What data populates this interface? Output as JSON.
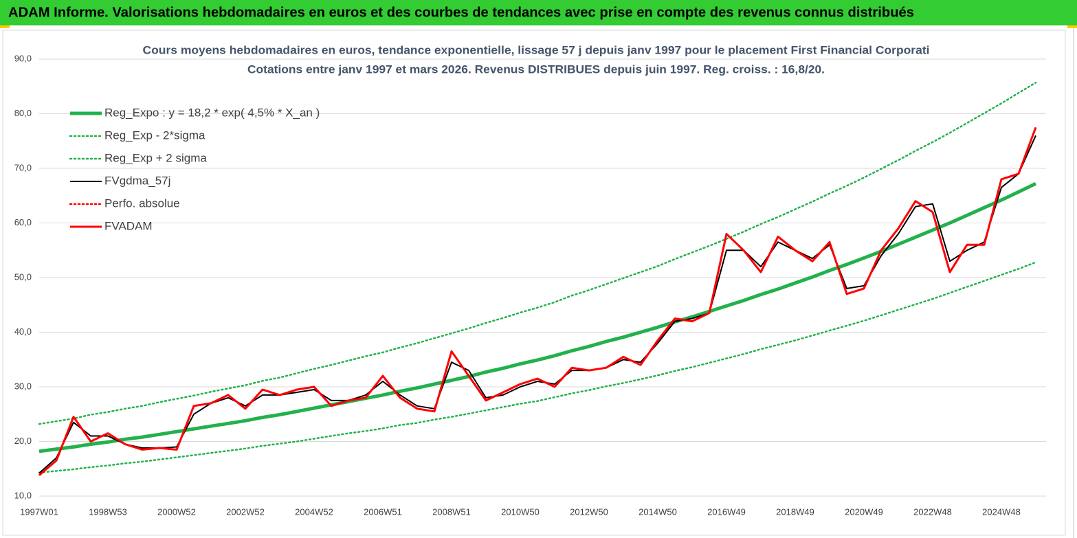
{
  "header": {
    "title": "ADAM Informe. Valorisations hebdomadaires en euros et des courbes de tendances avec prise en compte des revenus connus distribués"
  },
  "chart_data": {
    "type": "line",
    "title": "Cours moyens hebdomadaires en euros, tendance exponentielle, lissage 57 j depuis janv 1997 pour le placement First Financial Corporati",
    "subtitle": "Cotations entre janv 1997 et mars 2026. Revenus DISTRIBUES depuis juin 1997. Reg. croiss. : 16,8/20.",
    "categories": [
      "1997W01",
      null,
      null,
      null,
      "1998W53",
      null,
      null,
      null,
      "2000W52",
      null,
      null,
      null,
      "2002W52",
      null,
      null,
      null,
      "2004W52",
      null,
      null,
      null,
      "2006W51",
      null,
      null,
      null,
      "2008W51",
      null,
      null,
      null,
      "2010W50",
      null,
      null,
      null,
      "2012W50",
      null,
      null,
      null,
      "2014W50",
      null,
      null,
      null,
      "2016W49",
      null,
      null,
      null,
      "2018W49",
      null,
      null,
      null,
      "2020W49",
      null,
      null,
      null,
      "2022W48",
      null,
      null,
      null,
      "2024W48",
      null,
      null
    ],
    "ylim": [
      10,
      90
    ],
    "yticks": [
      {
        "value": 10,
        "label": "10,0"
      },
      {
        "value": 20,
        "label": "20,0"
      },
      {
        "value": 30,
        "label": "30,0"
      },
      {
        "value": 40,
        "label": "40,0"
      },
      {
        "value": 50,
        "label": "50,0"
      },
      {
        "value": 60,
        "label": "60,0"
      },
      {
        "value": 70,
        "label": "70,0"
      },
      {
        "value": 80,
        "label": "80,0"
      },
      {
        "value": 90,
        "label": "90,0"
      }
    ],
    "grid": true,
    "legend": "top-left",
    "series": [
      {
        "name": "Reg_Expo : y = 18,2 * exp( 4,5% *  X_an )",
        "color": "#22b14c",
        "style": "thick",
        "values": [
          18.2,
          18.6,
          19.0,
          19.5,
          19.9,
          20.4,
          20.8,
          21.3,
          21.8,
          22.3,
          22.8,
          23.3,
          23.8,
          24.4,
          24.9,
          25.5,
          26.1,
          26.7,
          27.3,
          27.9,
          28.5,
          29.2,
          29.8,
          30.5,
          31.2,
          31.9,
          32.7,
          33.4,
          34.2,
          34.9,
          35.7,
          36.6,
          37.4,
          38.3,
          39.1,
          40.0,
          40.9,
          41.9,
          42.8,
          43.8,
          44.8,
          45.8,
          46.9,
          47.9,
          49.0,
          50.1,
          51.3,
          52.4,
          53.6,
          54.8,
          56.1,
          57.4,
          58.7,
          60.0,
          61.4,
          62.8,
          64.2,
          65.7,
          67.2
        ]
      },
      {
        "name": "Reg_Exp - 2*sigma",
        "color": "#22b14c",
        "style": "dotted",
        "values": [
          14.3,
          14.6,
          14.9,
          15.3,
          15.6,
          16.0,
          16.3,
          16.7,
          17.1,
          17.5,
          17.9,
          18.3,
          18.7,
          19.2,
          19.6,
          20.0,
          20.5,
          21.0,
          21.5,
          21.9,
          22.4,
          23.0,
          23.4,
          24.0,
          24.5,
          25.1,
          25.7,
          26.3,
          26.9,
          27.4,
          28.1,
          28.8,
          29.4,
          30.1,
          30.7,
          31.4,
          32.1,
          32.9,
          33.6,
          34.4,
          35.2,
          36.0,
          36.9,
          37.7,
          38.5,
          39.4,
          40.3,
          41.2,
          42.1,
          43.1,
          44.1,
          45.1,
          46.1,
          47.2,
          48.3,
          49.4,
          50.5,
          51.6,
          52.8
        ]
      },
      {
        "name": "Reg_Exp + 2 sigma",
        "color": "#22b14c",
        "style": "dotted",
        "values": [
          23.2,
          23.7,
          24.2,
          24.9,
          25.4,
          26.0,
          26.5,
          27.2,
          27.8,
          28.4,
          29.1,
          29.7,
          30.3,
          31.1,
          31.7,
          32.5,
          33.3,
          34.0,
          34.8,
          35.6,
          36.3,
          37.2,
          38.0,
          38.9,
          39.8,
          40.7,
          41.7,
          42.6,
          43.6,
          44.5,
          45.5,
          46.7,
          47.7,
          48.8,
          49.9,
          51.0,
          52.1,
          53.4,
          54.6,
          55.8,
          57.1,
          58.4,
          59.8,
          61.1,
          62.5,
          63.9,
          65.4,
          66.8,
          68.3,
          69.9,
          71.5,
          73.2,
          74.8,
          76.5,
          78.3,
          80.1,
          81.9,
          83.8,
          85.7
        ]
      },
      {
        "name": "FVgdma_57j",
        "color": "#000000",
        "style": "solid",
        "values": [
          14.2,
          17.0,
          23.5,
          21.0,
          21.0,
          19.5,
          18.8,
          18.8,
          19.0,
          25.0,
          27.0,
          28.0,
          26.5,
          28.5,
          28.5,
          29.0,
          29.5,
          27.5,
          27.5,
          28.5,
          31.0,
          28.5,
          26.5,
          26.0,
          34.5,
          33.0,
          28.0,
          28.5,
          30.0,
          31.0,
          30.5,
          33.0,
          33.0,
          33.5,
          35.0,
          34.5,
          38.0,
          42.0,
          42.5,
          43.5,
          55.0,
          55.0,
          52.0,
          56.5,
          55.0,
          53.5,
          56.0,
          48.0,
          48.5,
          54.0,
          58.0,
          63.0,
          63.5,
          53.0,
          55.0,
          56.5,
          66.5,
          69.0,
          76.0
        ]
      },
      {
        "name": "Perfo. absolue",
        "color": "#ff0000",
        "style": "dotted",
        "values": [
          null,
          null,
          null,
          null,
          null,
          null,
          null,
          null,
          null,
          null,
          null,
          null,
          null,
          null,
          null,
          null,
          null,
          null,
          null,
          null,
          null,
          null,
          null,
          null,
          null,
          null,
          null,
          null,
          null,
          null,
          null,
          null,
          null,
          null,
          null,
          null,
          null,
          null,
          null,
          null,
          null,
          null,
          null,
          null,
          null,
          null,
          null,
          null,
          null,
          null,
          null,
          null,
          null,
          null,
          null,
          null,
          null,
          null,
          null
        ]
      },
      {
        "name": "FVADAM",
        "color": "#ff0000",
        "style": "medium",
        "values": [
          13.8,
          16.5,
          24.5,
          20.0,
          21.5,
          19.5,
          18.5,
          18.8,
          18.5,
          26.5,
          27.0,
          28.5,
          26.0,
          29.5,
          28.5,
          29.5,
          30.0,
          26.5,
          27.5,
          28.0,
          32.0,
          28.0,
          26.0,
          25.5,
          36.5,
          32.0,
          27.5,
          29.0,
          30.5,
          31.5,
          30.0,
          33.5,
          33.0,
          33.5,
          35.5,
          34.0,
          38.5,
          42.5,
          42.0,
          43.5,
          58.0,
          55.0,
          51.0,
          57.5,
          55.0,
          53.0,
          56.5,
          47.0,
          48.0,
          55.0,
          59.0,
          64.0,
          62.0,
          51.0,
          56.0,
          56.0,
          68.0,
          69.0,
          77.5
        ]
      }
    ]
  }
}
